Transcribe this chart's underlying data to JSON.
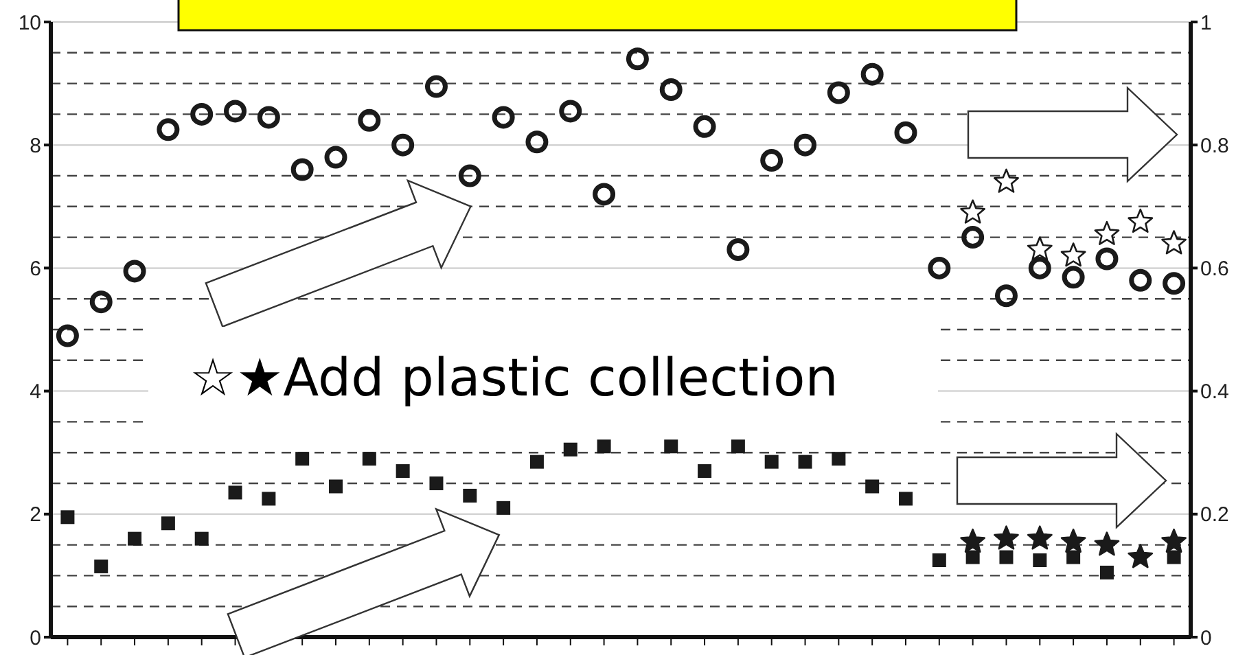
{
  "chart_data": {
    "type": "scatter",
    "categories": [
      null,
      null,
      null,
      null,
      null,
      null,
      null,
      null,
      null,
      null,
      null,
      null,
      null,
      null,
      null,
      null,
      null,
      null,
      null,
      null,
      null,
      null,
      null,
      null,
      null,
      null,
      null,
      null,
      null,
      null,
      null,
      null,
      null,
      null
    ],
    "series": [
      {
        "color": "#1a1a1a",
        "marker": "circle",
        "values": [
          4.9,
          5.45,
          5.95,
          8.25,
          8.5,
          8.55,
          8.45,
          7.6,
          7.8,
          8.4,
          8.0,
          8.95,
          7.5,
          8.45,
          8.05,
          8.55,
          7.2,
          9.4,
          8.9,
          8.3,
          6.3,
          7.75,
          8.0,
          8.85,
          9.15,
          8.2,
          6.0,
          6.5,
          5.55,
          6.0,
          5.85,
          6.15,
          5.8,
          5.75
        ]
      },
      {
        "color": "#1a1a1a",
        "marker": "square",
        "values": [
          1.95,
          1.15,
          1.6,
          1.85,
          1.6,
          2.35,
          2.25,
          2.9,
          2.45,
          2.9,
          2.7,
          2.5,
          2.3,
          2.1,
          2.85,
          3.05,
          3.1,
          null,
          3.1,
          2.7,
          3.1,
          2.85,
          2.85,
          2.9,
          2.45,
          2.25,
          1.25,
          1.3,
          1.3,
          1.25,
          1.3,
          1.05,
          null,
          1.3
        ]
      },
      {
        "color": "#ffffff",
        "marker": "star",
        "values": [
          null,
          null,
          null,
          null,
          null,
          null,
          null,
          null,
          null,
          null,
          null,
          null,
          null,
          null,
          null,
          null,
          null,
          null,
          null,
          null,
          null,
          null,
          null,
          null,
          null,
          null,
          null,
          6.9,
          7.4,
          6.3,
          6.2,
          6.55,
          6.75,
          6.4
        ]
      },
      {
        "color": "#1a1a1a",
        "marker": "star",
        "values": [
          null,
          null,
          null,
          null,
          null,
          null,
          null,
          null,
          null,
          null,
          null,
          null,
          null,
          null,
          null,
          null,
          null,
          null,
          null,
          null,
          null,
          null,
          null,
          null,
          null,
          null,
          null,
          1.55,
          1.6,
          1.6,
          1.55,
          1.5,
          1.3,
          1.55
        ]
      }
    ],
    "ylim": [
      0,
      10
    ],
    "yticks": [
      0,
      {
        "value": 0.5,
        "label": null
      },
      {
        "value": 1,
        "label": null
      },
      {
        "value": 1.5,
        "label": null
      },
      2,
      {
        "value": 2.5,
        "label": null
      },
      {
        "value": 3,
        "label": null
      },
      {
        "value": 3.5,
        "label": null
      },
      4,
      {
        "value": 4.5,
        "label": null
      },
      {
        "value": 5,
        "label": null
      },
      {
        "value": 5.5,
        "label": null
      },
      6,
      {
        "value": 6.5,
        "label": null
      },
      {
        "value": 7,
        "label": null
      },
      {
        "value": 7.5,
        "label": null
      },
      8,
      {
        "value": 8.5,
        "label": null
      },
      {
        "value": 9,
        "label": null
      },
      {
        "value": 9.5,
        "label": null
      },
      10
    ],
    "y2lim": [
      0,
      1
    ],
    "y2ticks": [
      0,
      0.2,
      0.4,
      0.6,
      0.8,
      1
    ],
    "grid": "y",
    "annotations": [
      "☆★Add plastic collection"
    ]
  }
}
